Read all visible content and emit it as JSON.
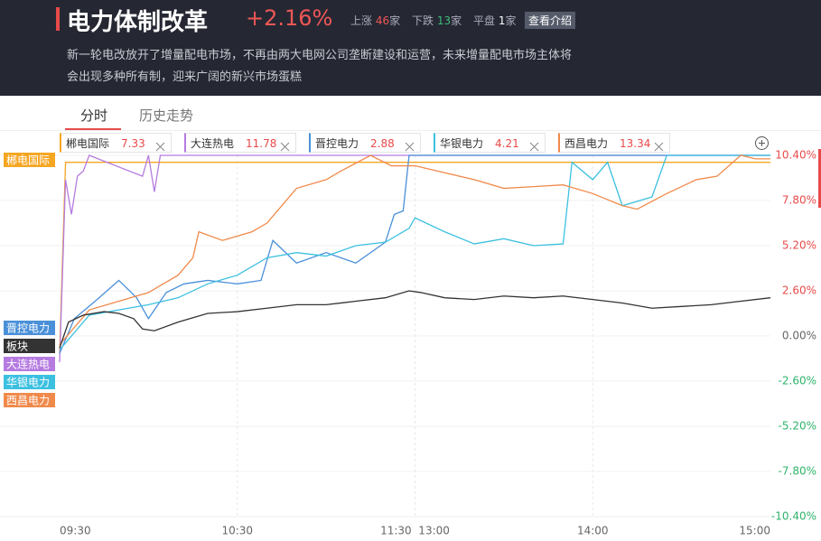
{
  "header": {
    "title": "电力体制改革",
    "change": "+2.16%",
    "stats": [
      {
        "label": "上涨",
        "value": "46",
        "unit": "家"
      },
      {
        "label": "下跌",
        "value": "13",
        "unit": "家"
      },
      {
        "label": "平盘",
        "value": "1",
        "unit": "家"
      }
    ],
    "button": "查看介绍",
    "description": [
      "新一轮电改放开了增量配电市场，不再由两大电网公司垄断建设和运营，未来增量配电市场主体将",
      "会出现多种所有制，迎来广阔的新兴市场蛋糕"
    ]
  },
  "tabs": [
    "分时",
    "历史走势"
  ],
  "chart_data": {
    "type": "line",
    "ylim": [
      -10.4,
      10.4
    ],
    "xlim": [
      0,
      240
    ],
    "yticks": [
      {
        "value": 10.4,
        "label": "10.40%"
      },
      {
        "value": 7.8,
        "label": "7.80%"
      },
      {
        "value": 5.2,
        "label": "5.20%"
      },
      {
        "value": 2.6,
        "label": "2.60%"
      },
      {
        "value": 0,
        "label": "0.00%"
      },
      {
        "value": -2.6,
        "label": "-2.60%"
      },
      {
        "value": -5.2,
        "label": "-5.20%"
      },
      {
        "value": -7.8,
        "label": "-7.80%"
      },
      {
        "value": -10.4,
        "label": "-10.40%"
      }
    ],
    "xticks": [
      {
        "value": 0,
        "label": "09:30"
      },
      {
        "value": 60,
        "label": "10:30"
      },
      {
        "value": 120,
        "label": "11:30  13:00"
      },
      {
        "value": 180,
        "label": "14:00"
      },
      {
        "value": 240,
        "label": "15:00"
      }
    ],
    "grid": true,
    "series": [
      {
        "name": "郴电国际",
        "price": "7.33",
        "color": "#f5a623",
        "x": [
          0,
          2,
          240
        ],
        "values": [
          -1,
          10,
          10
        ]
      },
      {
        "name": "大连热电",
        "price": "11.78",
        "color": "#b57be0",
        "x": [
          0,
          2,
          4,
          6,
          8,
          10,
          28,
          30,
          32,
          34,
          36,
          240
        ],
        "values": [
          -1.5,
          9,
          7,
          9.2,
          9.5,
          10.4,
          9.2,
          10.4,
          8.3,
          10.4,
          10.4,
          10.4
        ]
      },
      {
        "name": "晋控电力",
        "price": "2.88",
        "color": "#4a90d9",
        "x": [
          0,
          5,
          12,
          20,
          26,
          30,
          36,
          42,
          50,
          60,
          68,
          72,
          80,
          90,
          100,
          110,
          113,
          116,
          118,
          240
        ],
        "values": [
          -1,
          1,
          2,
          3.2,
          2.2,
          1,
          2.5,
          3,
          3.2,
          3,
          3.2,
          5.5,
          4.2,
          4.8,
          4.2,
          5.4,
          7,
          7.2,
          10.4,
          10.4
        ]
      },
      {
        "name": "华银电力",
        "price": "4.21",
        "color": "#3cc0e0",
        "x": [
          0,
          10,
          20,
          30,
          40,
          50,
          60,
          70,
          80,
          90,
          100,
          110,
          118,
          120,
          130,
          140,
          150,
          160,
          170,
          173,
          180,
          185,
          190,
          200,
          205,
          240
        ],
        "values": [
          -0.8,
          1.2,
          1.5,
          1.8,
          2.2,
          3,
          3.5,
          4.5,
          4.8,
          4.6,
          5.2,
          5.4,
          6.2,
          6.8,
          6,
          5.3,
          5.6,
          5.2,
          5.3,
          10,
          9,
          10,
          7.5,
          8,
          10.4,
          10.4
        ]
      },
      {
        "name": "西昌电力",
        "price": "13.34",
        "color": "#f08a4b",
        "x": [
          0,
          10,
          20,
          30,
          40,
          45,
          47,
          55,
          65,
          70,
          80,
          90,
          95,
          105,
          112,
          120,
          130,
          140,
          150,
          160,
          170,
          180,
          190,
          195,
          205,
          215,
          222,
          230,
          235,
          240
        ],
        "values": [
          -0.5,
          1.5,
          2,
          2.5,
          3.5,
          4.5,
          6,
          5.5,
          6,
          6.5,
          8.5,
          9,
          9.5,
          10.4,
          9.8,
          9.8,
          9.4,
          9,
          8.5,
          8.6,
          8.7,
          8.2,
          7.5,
          7.3,
          8.2,
          9,
          9.2,
          10.4,
          10.2,
          10.2
        ]
      },
      {
        "name": "板块",
        "color": "#333333",
        "x": [
          0,
          3,
          8,
          15,
          20,
          25,
          28,
          32,
          40,
          50,
          60,
          70,
          80,
          90,
          100,
          110,
          118,
          122,
          130,
          140,
          150,
          160,
          170,
          180,
          190,
          200,
          210,
          220,
          230,
          240
        ],
        "values": [
          -0.7,
          0.8,
          1.2,
          1.4,
          1.3,
          1.0,
          0.4,
          0.3,
          0.8,
          1.3,
          1.4,
          1.6,
          1.8,
          1.8,
          2.0,
          2.2,
          2.6,
          2.5,
          2.2,
          2.1,
          2.3,
          2.2,
          2.3,
          2.1,
          1.9,
          1.6,
          1.7,
          1.8,
          2.0,
          2.2
        ]
      }
    ]
  }
}
